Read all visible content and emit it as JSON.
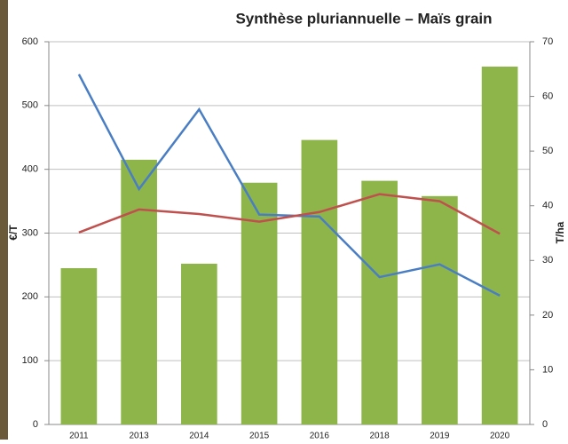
{
  "chart_data": {
    "type": "bar-line",
    "title": "Synthèse pluriannuelle – Maïs grain",
    "y_label": "€/T",
    "y2_label": "T/ha",
    "categories": [
      "2011",
      "2013",
      "2014",
      "2015",
      "2016",
      "2018",
      "2019",
      "2020"
    ],
    "series": [
      {
        "type": "bar",
        "color": "#8db549",
        "values": [
          245,
          415,
          252,
          379,
          446,
          382,
          358,
          561
        ]
      },
      {
        "type": "line",
        "color": "#4a7ec4",
        "values": [
          549,
          369,
          494,
          329,
          326,
          231,
          251,
          202
        ]
      },
      {
        "type": "line",
        "color": "#c0504d",
        "values": [
          301,
          337,
          330,
          318,
          333,
          361,
          350,
          299
        ]
      }
    ],
    "ylim": [
      0,
      600
    ],
    "yticks": [
      0,
      100,
      200,
      300,
      400,
      500,
      600
    ],
    "y2lim": [
      0,
      70
    ],
    "y2ticks": [
      0,
      10,
      20,
      30,
      40,
      50,
      60,
      70
    ],
    "grid": true
  }
}
